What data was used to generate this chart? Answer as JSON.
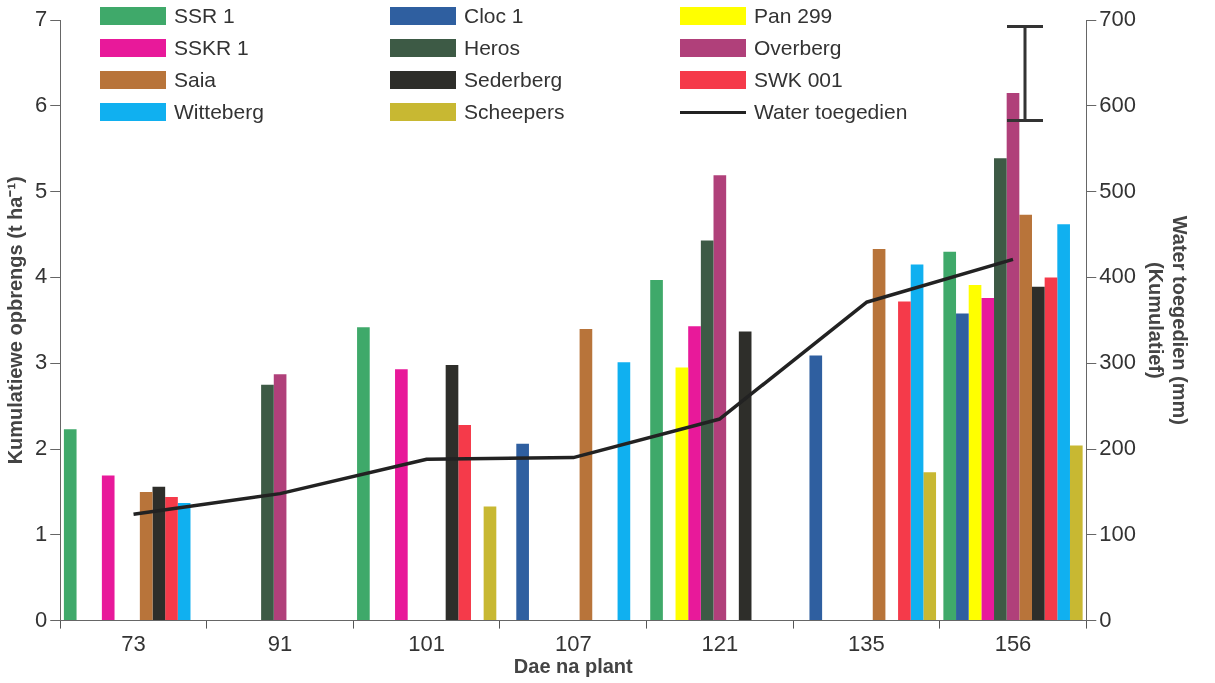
{
  "chart_data": {
    "type": "bar",
    "xlabel": "Dae na plant",
    "ylabel": "Kumulatiewe opbrengs (t ha⁻¹)",
    "y2label": "Water toegedien (mm)\n(Kumulatief)",
    "categories": [
      "73",
      "91",
      "101",
      "107",
      "121",
      "135",
      "156"
    ],
    "series": [
      {
        "name": "SSR 1",
        "color": "#3fa96a",
        "values": [
          2.23,
          0,
          3.42,
          0,
          3.97,
          0,
          4.3
        ]
      },
      {
        "name": "Cloc 1",
        "color": "#2f5fa0",
        "values": [
          0,
          0,
          0,
          2.06,
          0,
          3.09,
          3.58
        ]
      },
      {
        "name": "Pan 299",
        "color": "#ffff00",
        "values": [
          0,
          0,
          0,
          0,
          2.95,
          0,
          3.91
        ]
      },
      {
        "name": "SSKR 1",
        "color": "#e8199a",
        "values": [
          1.69,
          0,
          2.93,
          0,
          3.43,
          0,
          3.76
        ]
      },
      {
        "name": "Heros",
        "color": "#3d5a45",
        "values": [
          0,
          2.75,
          0,
          0,
          4.43,
          0,
          5.39
        ]
      },
      {
        "name": "Overberg",
        "color": "#b0407a",
        "values": [
          0,
          2.87,
          0,
          0,
          5.19,
          0,
          6.15
        ]
      },
      {
        "name": "Saia",
        "color": "#b8743a",
        "values": [
          1.5,
          0,
          0,
          3.4,
          0,
          4.33,
          4.73
        ]
      },
      {
        "name": "Sederberg",
        "color": "#2e2e2a",
        "values": [
          1.56,
          0,
          2.98,
          0,
          3.37,
          0,
          3.89
        ]
      },
      {
        "name": "SWK 001",
        "color": "#f53a4a",
        "values": [
          1.44,
          0,
          2.28,
          0,
          0,
          3.72,
          4.0
        ]
      },
      {
        "name": "Witteberg",
        "color": "#10b0f0",
        "values": [
          1.37,
          0,
          0,
          3.01,
          0,
          4.15,
          4.62
        ]
      },
      {
        "name": "Scheepers",
        "color": "#c8b832",
        "values": [
          0,
          0,
          1.33,
          0,
          0,
          1.73,
          2.04
        ]
      },
      {
        "name": "Water toegedien",
        "type": "line",
        "axis": "y2",
        "color": "#222222",
        "values": [
          124,
          148,
          188,
          190,
          235,
          371,
          421
        ]
      }
    ],
    "ylim": [
      0,
      7
    ],
    "yticks": [
      0,
      1,
      2,
      3,
      4,
      5,
      6,
      7
    ],
    "y2lim": [
      0,
      700
    ],
    "y2ticks": [
      0,
      100,
      200,
      300,
      400,
      500,
      600,
      700
    ],
    "grid": false,
    "legend": "top",
    "marker": "none",
    "line_style": "solid"
  }
}
